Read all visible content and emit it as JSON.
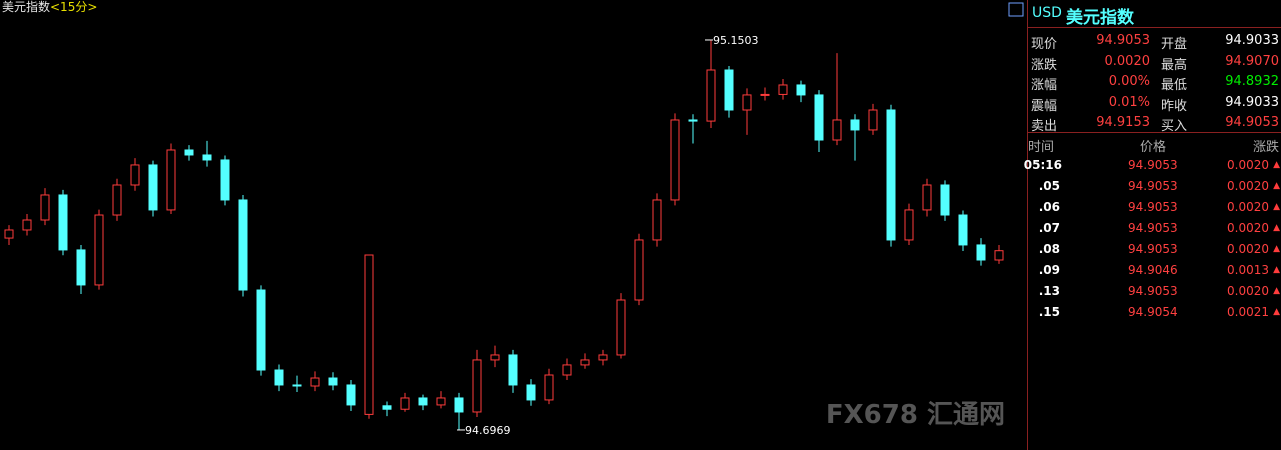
{
  "chart_data": {
    "type": "candlestick",
    "title": "美元指数",
    "period": "<15分>",
    "ylim": [
      94.6736,
      95.1805
    ],
    "up_color": "#ff3c3c",
    "down_color": "#54ffff",
    "candles": [
      [
        94.92,
        94.935,
        94.912,
        94.9294
      ],
      [
        94.9294,
        94.948,
        94.923,
        94.941
      ],
      [
        94.941,
        94.978,
        94.935,
        94.9701
      ],
      [
        94.9701,
        94.976,
        94.9,
        94.9062
      ],
      [
        94.9062,
        94.912,
        94.855,
        94.8655
      ],
      [
        94.8655,
        94.953,
        94.86,
        94.9468
      ],
      [
        94.9468,
        94.989,
        94.94,
        94.9817
      ],
      [
        94.9817,
        95.013,
        94.975,
        95.005
      ],
      [
        95.005,
        95.01,
        94.945,
        94.9527
      ],
      [
        94.9527,
        95.03,
        94.948,
        95.0224
      ],
      [
        95.0224,
        95.028,
        95.01,
        95.0166
      ],
      [
        95.0166,
        95.033,
        95.003,
        95.0108
      ],
      [
        95.0108,
        95.016,
        94.958,
        94.9643
      ],
      [
        94.9643,
        94.97,
        94.852,
        94.8596
      ],
      [
        94.8596,
        94.865,
        94.76,
        94.7666
      ],
      [
        94.7666,
        94.773,
        94.742,
        94.7492
      ],
      [
        94.7492,
        94.76,
        94.741,
        94.748
      ],
      [
        94.748,
        94.765,
        94.742,
        94.7573
      ],
      [
        94.7573,
        94.764,
        94.743,
        94.7492
      ],
      [
        94.7492,
        94.755,
        94.719,
        94.726
      ],
      [
        94.715,
        94.9003,
        94.71,
        94.9003
      ],
      [
        94.725,
        94.73,
        94.713,
        94.721
      ],
      [
        94.721,
        94.74,
        94.718,
        94.7341
      ],
      [
        94.7341,
        94.738,
        94.72,
        94.726
      ],
      [
        94.726,
        94.742,
        94.722,
        94.7341
      ],
      [
        94.7341,
        94.74,
        94.6969,
        94.7178
      ],
      [
        94.7178,
        94.79,
        94.712,
        94.7783
      ],
      [
        94.7783,
        94.795,
        94.77,
        94.7841
      ],
      [
        94.7841,
        94.79,
        94.74,
        94.7492
      ],
      [
        94.7492,
        94.756,
        94.725,
        94.7318
      ],
      [
        94.7318,
        94.768,
        94.727,
        94.7608
      ],
      [
        94.7608,
        94.78,
        94.755,
        94.7725
      ],
      [
        94.7725,
        94.786,
        94.768,
        94.7783
      ],
      [
        94.7783,
        94.79,
        94.772,
        94.7841
      ],
      [
        94.7841,
        94.856,
        94.78,
        94.848
      ],
      [
        94.848,
        94.925,
        94.842,
        94.9178
      ],
      [
        94.9178,
        94.972,
        94.91,
        94.9643
      ],
      [
        94.9643,
        95.065,
        94.958,
        95.0573
      ],
      [
        95.0573,
        95.064,
        95.03,
        95.056
      ],
      [
        95.056,
        95.1503,
        95.048,
        95.1154
      ],
      [
        95.1154,
        95.12,
        95.06,
        95.0689
      ],
      [
        95.0689,
        95.094,
        95.04,
        95.0864
      ],
      [
        95.0864,
        95.095,
        95.08,
        95.087
      ],
      [
        95.087,
        95.105,
        95.081,
        95.098
      ],
      [
        95.098,
        95.103,
        95.078,
        95.0864
      ],
      [
        95.0864,
        95.092,
        95.02,
        95.034
      ],
      [
        95.034,
        95.135,
        95.028,
        95.0573
      ],
      [
        95.0573,
        95.064,
        95.01,
        95.0457
      ],
      [
        95.0457,
        95.076,
        95.04,
        95.0689
      ],
      [
        95.0689,
        95.075,
        94.91,
        94.9178
      ],
      [
        94.9178,
        94.96,
        94.912,
        94.9527
      ],
      [
        94.9527,
        94.989,
        94.945,
        94.9817
      ],
      [
        94.9817,
        94.987,
        94.94,
        94.9468
      ],
      [
        94.9468,
        94.952,
        94.905,
        94.912
      ],
      [
        94.912,
        94.92,
        94.888,
        94.8945
      ],
      [
        94.8945,
        94.912,
        94.89,
        94.9053
      ]
    ],
    "high_marker": 39,
    "low_marker": 25
  },
  "watermark": "FX678 汇通网",
  "quote_panel": {
    "code": "USD",
    "name": "美元指数",
    "quotes": [
      [
        "现价",
        "94.9053",
        "开盘",
        "94.9033"
      ],
      [
        "涨跌",
        "0.0020",
        "最高",
        "94.9070"
      ],
      [
        "涨幅",
        "0.00%",
        "最低",
        "94.8932"
      ],
      [
        "震幅",
        "0.01%",
        "昨收",
        "94.9033"
      ],
      [
        "卖出",
        "94.9153",
        "买入",
        "94.9053"
      ]
    ],
    "trade_header": [
      "时间",
      "价格",
      "涨跌"
    ],
    "trades": [
      [
        "05:16",
        "94.9053",
        "0.0020"
      ],
      [
        ".05",
        "94.9053",
        "0.0020"
      ],
      [
        ".06",
        "94.9053",
        "0.0020"
      ],
      [
        ".07",
        "94.9053",
        "0.0020"
      ],
      [
        ".08",
        "94.9053",
        "0.0020"
      ],
      [
        ".09",
        "94.9046",
        "0.0013"
      ],
      [
        ".13",
        "94.9053",
        "0.0020"
      ],
      [
        ".15",
        "94.9054",
        "0.0021"
      ]
    ]
  }
}
